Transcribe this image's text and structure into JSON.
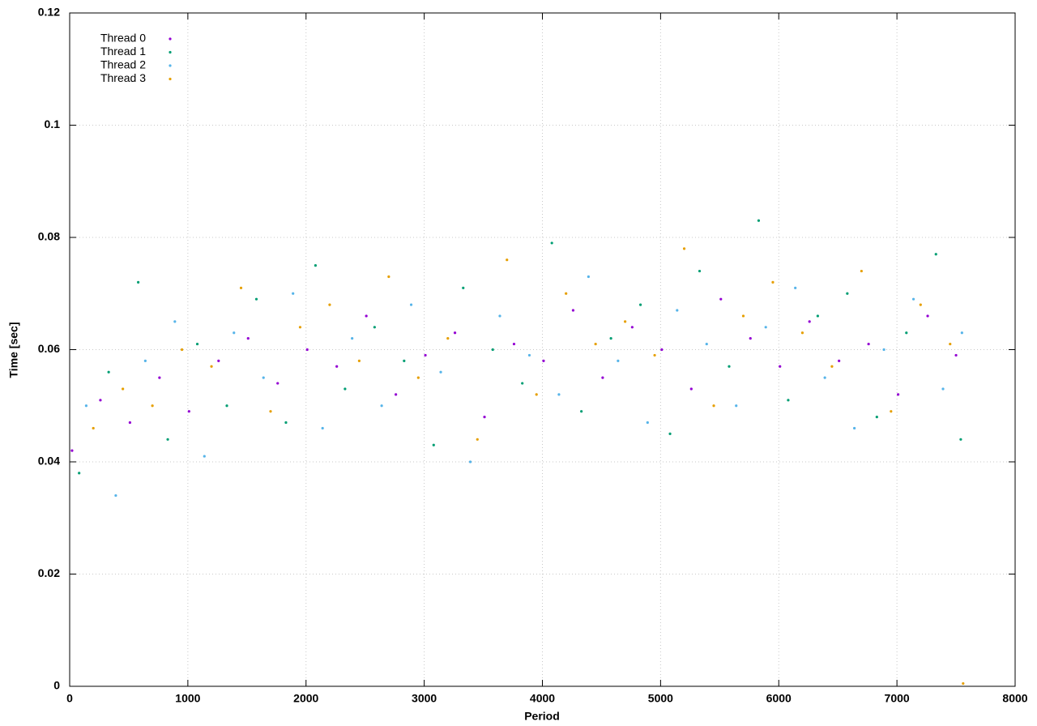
{
  "chart_data": {
    "type": "scatter",
    "x_label": "Period",
    "y_label": "Time [sec]",
    "xlim": [
      0,
      8000
    ],
    "ylim": [
      0,
      0.12
    ],
    "xticks": [
      0,
      1000,
      2000,
      3000,
      4000,
      5000,
      6000,
      7000,
      8000
    ],
    "yticks": [
      0,
      0.02,
      0.04,
      0.06,
      0.08,
      0.1,
      0.12
    ],
    "grid": true,
    "legend": "top-left",
    "series": [
      {
        "name": "Thread 0",
        "color": "#9400d3",
        "x": [
          20,
          260,
          510,
          760,
          1010,
          1260,
          1510,
          1760,
          2010,
          2260,
          2510,
          2760,
          3010,
          3260,
          3510,
          3760,
          4010,
          4260,
          4510,
          4760,
          5010,
          5260,
          5510,
          5760,
          6010,
          6260,
          6510,
          6760,
          7010,
          7260,
          7500
        ],
        "values": [
          0.042,
          0.051,
          0.047,
          0.055,
          0.049,
          0.058,
          0.062,
          0.054,
          0.06,
          0.057,
          0.066,
          0.052,
          0.059,
          0.063,
          0.048,
          0.061,
          0.058,
          0.067,
          0.055,
          0.064,
          0.06,
          0.053,
          0.069,
          0.062,
          0.057,
          0.065,
          0.058,
          0.061,
          0.052,
          0.066,
          0.059
        ]
      },
      {
        "name": "Thread 1",
        "color": "#009e73",
        "x": [
          80,
          330,
          580,
          830,
          1080,
          1330,
          1580,
          1830,
          2080,
          2330,
          2580,
          2830,
          3080,
          3330,
          3580,
          3830,
          4080,
          4330,
          4580,
          4830,
          5080,
          5330,
          5580,
          5830,
          6080,
          6330,
          6580,
          6830,
          7080,
          7330,
          7540
        ],
        "values": [
          0.038,
          0.056,
          0.072,
          0.044,
          0.061,
          0.05,
          0.069,
          0.047,
          0.075,
          0.053,
          0.064,
          0.058,
          0.043,
          0.071,
          0.06,
          0.054,
          0.079,
          0.049,
          0.062,
          0.068,
          0.045,
          0.074,
          0.057,
          0.083,
          0.051,
          0.066,
          0.07,
          0.048,
          0.063,
          0.077,
          0.044
        ]
      },
      {
        "name": "Thread 2",
        "color": "#56b4e9",
        "x": [
          140,
          390,
          640,
          890,
          1140,
          1390,
          1640,
          1890,
          2140,
          2390,
          2640,
          2890,
          3140,
          3390,
          3640,
          3890,
          4140,
          4390,
          4640,
          4890,
          5140,
          5390,
          5640,
          5890,
          6140,
          6390,
          6640,
          6890,
          7140,
          7390,
          7550
        ],
        "values": [
          0.05,
          0.034,
          0.058,
          0.065,
          0.041,
          0.063,
          0.055,
          0.07,
          0.046,
          0.062,
          0.05,
          0.068,
          0.056,
          0.04,
          0.066,
          0.059,
          0.052,
          0.073,
          0.058,
          0.047,
          0.067,
          0.061,
          0.05,
          0.064,
          0.071,
          0.055,
          0.046,
          0.06,
          0.069,
          0.053,
          0.063
        ]
      },
      {
        "name": "Thread 3",
        "color": "#e69f00",
        "x": [
          200,
          450,
          700,
          950,
          1200,
          1450,
          1700,
          1950,
          2200,
          2450,
          2700,
          2950,
          3200,
          3450,
          3700,
          3950,
          4200,
          4450,
          4700,
          4950,
          5200,
          5450,
          5700,
          5950,
          6200,
          6450,
          6700,
          6950,
          7200,
          7450,
          7560
        ],
        "values": [
          0.046,
          0.053,
          0.05,
          0.06,
          0.057,
          0.071,
          0.049,
          0.064,
          0.068,
          0.058,
          0.073,
          0.055,
          0.062,
          0.044,
          0.076,
          0.052,
          0.07,
          0.061,
          0.065,
          0.059,
          0.078,
          0.05,
          0.066,
          0.072,
          0.063,
          0.057,
          0.074,
          0.049,
          0.068,
          0.061,
          0.0005
        ]
      }
    ]
  }
}
